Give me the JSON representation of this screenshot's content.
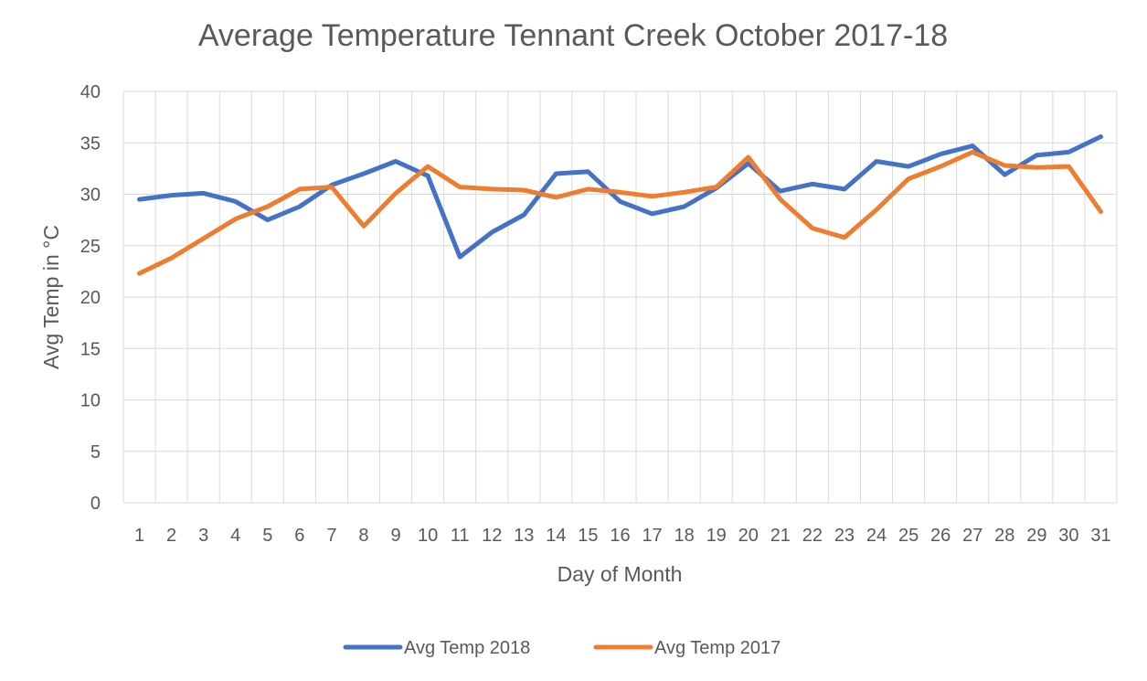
{
  "chart_data": {
    "type": "line",
    "title": "Average Temperature Tennant Creek October 2017-18",
    "xlabel": "Day of Month",
    "ylabel": "Avg Temp in °C",
    "categories": [
      "1",
      "2",
      "3",
      "4",
      "5",
      "6",
      "7",
      "8",
      "9",
      "10",
      "11",
      "12",
      "13",
      "14",
      "15",
      "16",
      "17",
      "18",
      "19",
      "20",
      "21",
      "22",
      "23",
      "24",
      "25",
      "26",
      "27",
      "28",
      "29",
      "30",
      "31"
    ],
    "ylim": [
      0,
      40
    ],
    "yticks": [
      "0",
      "5",
      "10",
      "15",
      "20",
      "25",
      "30",
      "35",
      "40"
    ],
    "grid": true,
    "legend_position": "bottom",
    "series": [
      {
        "name": "Avg Temp 2018",
        "color": "#4472C4",
        "values": [
          29.5,
          29.9,
          30.1,
          29.3,
          27.5,
          28.8,
          30.9,
          32.0,
          33.2,
          31.8,
          23.9,
          26.3,
          28.0,
          32.0,
          32.2,
          29.3,
          28.1,
          28.8,
          30.6,
          33.0,
          30.3,
          31.0,
          30.5,
          33.2,
          32.7,
          33.9,
          34.7,
          31.9,
          33.8,
          34.1,
          35.6
        ]
      },
      {
        "name": "Avg Temp 2017",
        "color": "#ED7D31",
        "values": [
          22.3,
          23.8,
          25.7,
          27.6,
          28.8,
          30.5,
          30.7,
          26.9,
          30.1,
          32.7,
          30.7,
          30.5,
          30.4,
          29.7,
          30.5,
          30.2,
          29.8,
          30.2,
          30.7,
          33.6,
          29.5,
          26.7,
          25.8,
          28.5,
          31.5,
          32.7,
          34.1,
          32.8,
          32.6,
          32.7,
          28.3
        ]
      }
    ]
  }
}
